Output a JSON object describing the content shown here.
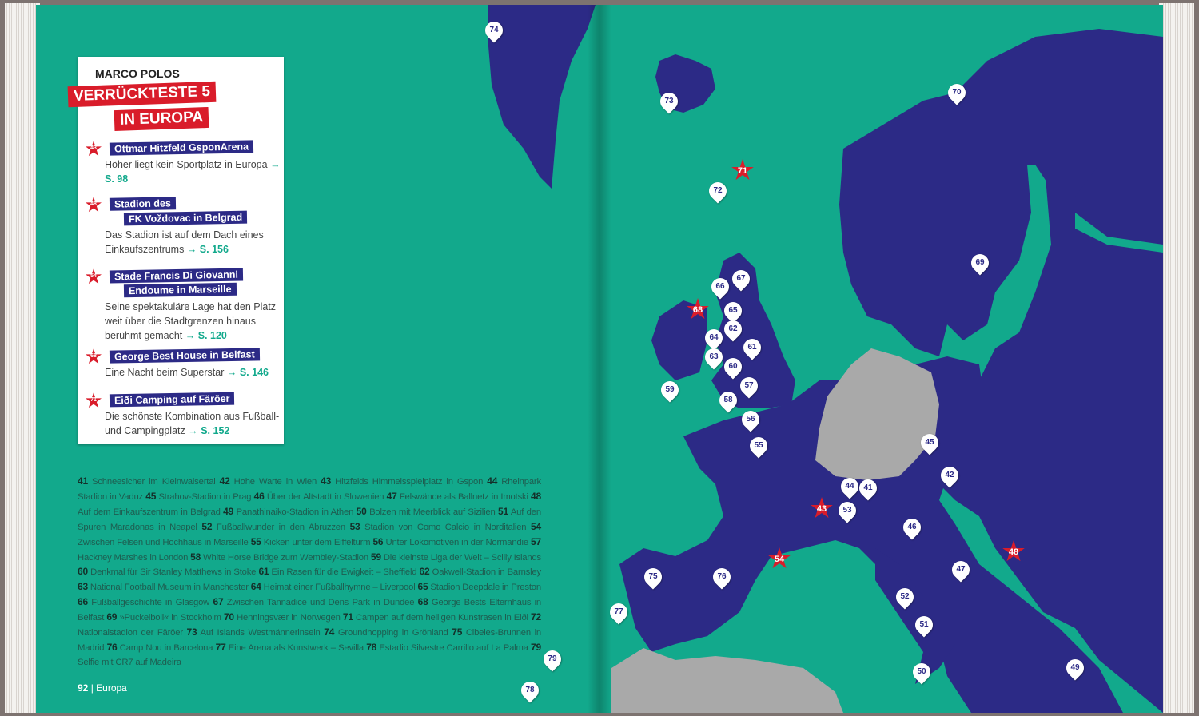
{
  "colors": {
    "sea": "#12a98c",
    "land": "#2c2a86",
    "germany_africa": "#a9a9a9",
    "accent": "#d91c2a"
  },
  "box": {
    "brand": "MARCO POLOS",
    "title_line1": "VERRÜCKTESTE 5",
    "title_line2": "IN EUROPA",
    "items": [
      {
        "num": "43",
        "title": [
          "Ottmar Hitzfeld GsponArena"
        ],
        "desc": "Höher liegt kein Sportplatz in Europa",
        "ref": "→ S. 98"
      },
      {
        "num": "48",
        "title": [
          "Stadion des",
          "FK Voždovac in Belgrad"
        ],
        "desc": "Das Stadion ist auf dem Dach eines Einkaufszentrums",
        "ref": "→ S. 156"
      },
      {
        "num": "54",
        "title": [
          "Stade Francis Di Giovanni",
          "Endoume in Marseille"
        ],
        "desc": "Seine spektakuläre Lage hat den Platz weit über die Stadtgrenzen hinaus berühmt gemacht",
        "ref": "→ S. 120"
      },
      {
        "num": "68",
        "title": [
          "George Best House in Belfast"
        ],
        "desc": "Eine Nacht beim Superstar",
        "ref": "→ S. 146"
      },
      {
        "num": "71",
        "title": [
          "Eiði Camping auf Färöer"
        ],
        "desc": "Die schönste Kombination aus Fußball- und Campingplatz",
        "ref": "→ S. 152"
      }
    ]
  },
  "legend": [
    {
      "num": "41",
      "text": "Schneesicher im Kleinwalsertal"
    },
    {
      "num": "42",
      "text": "Hohe Warte in Wien"
    },
    {
      "num": "43",
      "text": "Hitzfelds Himmelsspielplatz in Gspon"
    },
    {
      "num": "44",
      "text": "Rheinpark Stadion in Vaduz"
    },
    {
      "num": "45",
      "text": "Strahov-Stadion in Prag"
    },
    {
      "num": "46",
      "text": "Über der Altstadt in Slowenien"
    },
    {
      "num": "47",
      "text": "Felswände als Ballnetz in Imotski"
    },
    {
      "num": "48",
      "text": "Auf dem Einkaufszentrum in Belgrad"
    },
    {
      "num": "49",
      "text": "Panathinaiko-Stadion in Athen"
    },
    {
      "num": "50",
      "text": "Bolzen mit Meerblick auf Sizilien"
    },
    {
      "num": "51",
      "text": "Auf den Spuren Maradonas in Neapel"
    },
    {
      "num": "52",
      "text": "Fußballwunder in den Abruzzen"
    },
    {
      "num": "53",
      "text": "Stadion von Como Calcio in Norditalien"
    },
    {
      "num": "54",
      "text": "Zwischen Felsen und Hochhaus in Marseille"
    },
    {
      "num": "55",
      "text": "Kicken unter dem Eiffelturm"
    },
    {
      "num": "56",
      "text": "Unter Lokomotiven in der Normandie"
    },
    {
      "num": "57",
      "text": "Hackney Marshes in London"
    },
    {
      "num": "58",
      "text": "White Horse Bridge zum Wembley-Stadion"
    },
    {
      "num": "59",
      "text": "Die kleinste Liga der Welt – Scilly Islands"
    },
    {
      "num": "60",
      "text": "Denkmal für Sir Stanley Matthews in Stoke"
    },
    {
      "num": "61",
      "text": "Ein Rasen für die Ewigkeit – Sheffield"
    },
    {
      "num": "62",
      "text": "Oakwell-Stadion in Barnsley"
    },
    {
      "num": "63",
      "text": "National Football Museum in Manchester"
    },
    {
      "num": "64",
      "text": "Heimat einer Fußballhymne – Liverpool"
    },
    {
      "num": "65",
      "text": "Stadion Deepdale in Preston"
    },
    {
      "num": "66",
      "text": "Fußballgeschichte in Glasgow"
    },
    {
      "num": "67",
      "text": "Zwischen Tannadice und Dens Park in Dundee"
    },
    {
      "num": "68",
      "text": "George Bests Elternhaus in Belfast"
    },
    {
      "num": "69",
      "text": "»Puckelboll« in Stockholm"
    },
    {
      "num": "70",
      "text": "Henningsvær in Norwegen"
    },
    {
      "num": "71",
      "text": "Campen auf dem heiligen Kunstrasen in Eiði"
    },
    {
      "num": "72",
      "text": "Nationalstadion der Färöer"
    },
    {
      "num": "73",
      "text": "Auf Islands Westmännerinseln"
    },
    {
      "num": "74",
      "text": "Groundhopping in Grönland"
    },
    {
      "num": "75",
      "text": "Cibeles-Brunnen in Madrid"
    },
    {
      "num": "76",
      "text": "Camp Nou in Barcelona"
    },
    {
      "num": "77",
      "text": "Eine Arena als Kunstwerk – Sevilla"
    },
    {
      "num": "78",
      "text": "Estadio Silvestre Carrillo auf La Palma"
    },
    {
      "num": "79",
      "text": "Selfie mit CR7 auf Madeira"
    }
  ],
  "footer": {
    "page": "92",
    "section": "Europa"
  },
  "map_markers": {
    "pins": [
      "74",
      "73",
      "70",
      "72",
      "69",
      "66",
      "67",
      "65",
      "62",
      "64",
      "61",
      "63",
      "60",
      "57",
      "58",
      "59",
      "56",
      "55",
      "45",
      "42",
      "44",
      "41",
      "53",
      "46",
      "75",
      "76",
      "47",
      "52",
      "77",
      "51",
      "79",
      "50",
      "49",
      "78"
    ],
    "stars": [
      "71",
      "68",
      "43",
      "48",
      "54"
    ]
  }
}
